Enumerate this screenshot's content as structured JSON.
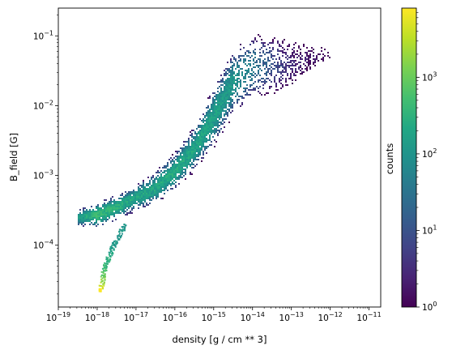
{
  "chart_data": {
    "type": "heatmap",
    "title": "",
    "xlabel": "density [g / cm ** 3]",
    "ylabel": "B_field [G]",
    "x_scale": "log",
    "y_scale": "log",
    "xlim": [
      1e-19,
      2e-11
    ],
    "ylim": [
      1.3e-05,
      0.25
    ],
    "grid": false,
    "x_ticks": [
      {
        "base": "10",
        "exp": "−19",
        "value": 1e-19
      },
      {
        "base": "10",
        "exp": "−18",
        "value": 1e-18
      },
      {
        "base": "10",
        "exp": "−17",
        "value": 1e-17
      },
      {
        "base": "10",
        "exp": "−16",
        "value": 1e-16
      },
      {
        "base": "10",
        "exp": "−15",
        "value": 1e-15
      },
      {
        "base": "10",
        "exp": "−14",
        "value": 1e-14
      },
      {
        "base": "10",
        "exp": "−13",
        "value": 1e-13
      },
      {
        "base": "10",
        "exp": "−12",
        "value": 1e-12
      },
      {
        "base": "10",
        "exp": "−11",
        "value": 1e-11
      }
    ],
    "y_ticks": [
      {
        "base": "10",
        "exp": "−4",
        "value": 0.0001
      },
      {
        "base": "10",
        "exp": "−3",
        "value": 0.001
      },
      {
        "base": "10",
        "exp": "−2",
        "value": 0.01
      },
      {
        "base": "10",
        "exp": "−1",
        "value": 0.1
      }
    ],
    "colorbar": {
      "label": "counts",
      "scale": "log",
      "colormap": "viridis",
      "range": [
        1,
        8000
      ],
      "ticks": [
        {
          "base": "10",
          "exp": "0",
          "value": 1
        },
        {
          "base": "10",
          "exp": "1",
          "value": 10
        },
        {
          "base": "10",
          "exp": "2",
          "value": 100
        },
        {
          "base": "10",
          "exp": "3",
          "value": 1000
        }
      ]
    },
    "distribution_ridge": [
      {
        "density": 3e-19,
        "b_field_low": 0.00022,
        "b_field_high": 0.00029,
        "counts": 120
      },
      {
        "density": 1e-18,
        "b_field_low": 0.00022,
        "b_field_high": 0.00035,
        "counts": 500
      },
      {
        "density": 3e-18,
        "b_field_low": 0.00028,
        "b_field_high": 0.00045,
        "counts": 300
      },
      {
        "density": 1e-17,
        "b_field_low": 0.00038,
        "b_field_high": 0.00065,
        "counts": 200
      },
      {
        "density": 3e-17,
        "b_field_low": 0.00048,
        "b_field_high": 0.00095,
        "counts": 220
      },
      {
        "density": 1e-16,
        "b_field_low": 0.0008,
        "b_field_high": 0.0018,
        "counts": 250
      },
      {
        "density": 3e-16,
        "b_field_low": 0.0015,
        "b_field_high": 0.004,
        "counts": 200
      },
      {
        "density": 1e-15,
        "b_field_low": 0.0035,
        "b_field_high": 0.015,
        "counts": 180
      },
      {
        "density": 3e-15,
        "b_field_low": 0.01,
        "b_field_high": 0.05,
        "counts": 120
      },
      {
        "density": 1e-14,
        "b_field_low": 0.015,
        "b_field_high": 0.09,
        "counts": 40
      },
      {
        "density": 1e-13,
        "b_field_low": 0.015,
        "b_field_high": 0.12,
        "counts": 3
      },
      {
        "density": 1e-12,
        "b_field_low": 0.03,
        "b_field_high": 0.1,
        "counts": 1
      }
    ],
    "lower_branch": [
      {
        "density": 1.2e-18,
        "b_field": 2.3e-05,
        "counts": 8000
      },
      {
        "density": 1.5e-18,
        "b_field": 5e-05,
        "counts": 600
      },
      {
        "density": 2.5e-18,
        "b_field": 0.0001,
        "counts": 200
      },
      {
        "density": 5e-18,
        "b_field": 0.0002,
        "counts": 150
      }
    ],
    "peak": {
      "density": 1.2e-18,
      "b_field": 2.3e-05,
      "counts": 8000
    }
  }
}
